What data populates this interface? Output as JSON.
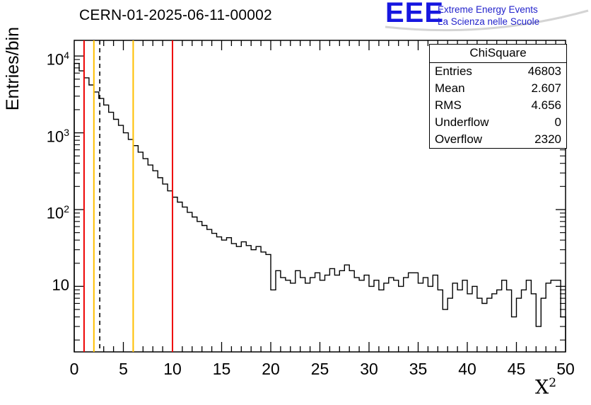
{
  "logo": {
    "text": "EEE",
    "line1": "Extreme Energy Events",
    "line2": "La Scienza nelle Scuole",
    "color": "#2323cc"
  },
  "chart_data": {
    "type": "line",
    "subtype": "step-histogram",
    "title": "CERN-01-2025-06-11-00002",
    "xlabel_base": "X",
    "xlabel_exp": "2",
    "ylabel": "Entries/bin",
    "y_scale": "log",
    "grid": false,
    "xlim": [
      0,
      50
    ],
    "ylim": [
      1.4,
      16000
    ],
    "bin_start": 0,
    "bin_width": 0.5,
    "values": [
      8000,
      6400,
      5200,
      4200,
      3400,
      2800,
      2300,
      1850,
      1500,
      1250,
      1000,
      820,
      680,
      560,
      460,
      380,
      320,
      260,
      215,
      175,
      145,
      125,
      108,
      92,
      80,
      70,
      62,
      55,
      49,
      44,
      40,
      43,
      36,
      33,
      38,
      34,
      30,
      33,
      28,
      26,
      9,
      16,
      13,
      12,
      11,
      16,
      13,
      11,
      13,
      15,
      12,
      14,
      17,
      14,
      16,
      19,
      16,
      13,
      12,
      14,
      10,
      12,
      9,
      11,
      13,
      12,
      10,
      13,
      15,
      15,
      11,
      13,
      10,
      14,
      9,
      5,
      7,
      11,
      9,
      12,
      8,
      10,
      7,
      6,
      7,
      8,
      9,
      12,
      9,
      4,
      7,
      9,
      12,
      8,
      3,
      7,
      11,
      12,
      12,
      4
    ],
    "x_major_ticks": [
      0,
      5,
      10,
      15,
      20,
      25,
      30,
      35,
      40,
      45,
      50
    ],
    "y_tick_labels": [
      {
        "base": "10",
        "exp": "",
        "value": 10
      },
      {
        "base": "10",
        "exp": "2",
        "value": 100
      },
      {
        "base": "10",
        "exp": "3",
        "value": 1000
      },
      {
        "base": "10",
        "exp": "4",
        "value": 10000
      }
    ],
    "marker_lines": [
      {
        "x": 1.0,
        "color": "#ee0000",
        "style": "solid"
      },
      {
        "x": 2.0,
        "color": "#ffbf00",
        "style": "solid"
      },
      {
        "x": 2.6,
        "color": "#000000",
        "style": "dashed"
      },
      {
        "x": 6.0,
        "color": "#ffbf00",
        "style": "solid"
      },
      {
        "x": 10.0,
        "color": "#ee0000",
        "style": "solid"
      }
    ],
    "stats": {
      "title": "ChiSquare",
      "rows": [
        {
          "label": "Entries",
          "value": "46803"
        },
        {
          "label": "Mean",
          "value": "2.607"
        },
        {
          "label": "RMS",
          "value": "4.656"
        },
        {
          "label": "Underflow",
          "value": "0"
        },
        {
          "label": "Overflow",
          "value": "2320"
        }
      ]
    }
  }
}
